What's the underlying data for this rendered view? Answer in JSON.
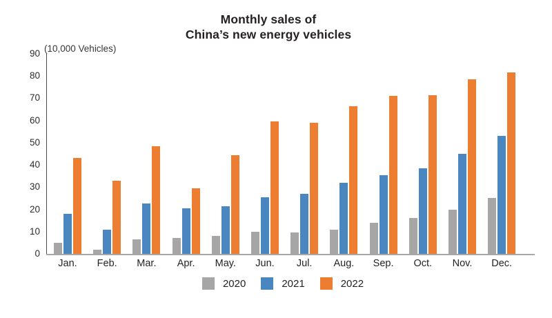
{
  "title": {
    "line1": "Monthly sales of",
    "line2": "China’s new energy vehicles"
  },
  "chart_data": {
    "type": "bar",
    "title": "Monthly sales of China’s new energy vehicles",
    "unit_label": "(10,000 Vehicles)",
    "xlabel": "",
    "ylabel": "(10,000 Vehicles)",
    "categories": [
      "Jan.",
      "Feb.",
      "Mar.",
      "Apr.",
      "May.",
      "Jun.",
      "Jul.",
      "Aug.",
      "Sep.",
      "Oct.",
      "Nov.",
      "Dec."
    ],
    "series": [
      {
        "name": "2020",
        "color": "#A6A6A6",
        "values": [
          5,
          2,
          6.5,
          7,
          8,
          10,
          9.5,
          11,
          14,
          16,
          20,
          25
        ]
      },
      {
        "name": "2021",
        "color": "#4A86C0",
        "values": [
          18,
          11,
          22.5,
          20.5,
          21.5,
          25.5,
          27,
          32,
          35.5,
          38.5,
          45,
          53
        ]
      },
      {
        "name": "2022",
        "color": "#ED7D31",
        "values": [
          43,
          33,
          48.5,
          29.5,
          44.5,
          59.5,
          59,
          66.5,
          71,
          71.5,
          78.5,
          81.5
        ]
      }
    ],
    "ylim": [
      0,
      90
    ],
    "y_tick_step": 10,
    "y_ticks": [
      0,
      10,
      20,
      30,
      40,
      50,
      60,
      70,
      80,
      90
    ],
    "grid": false,
    "legend_position": "bottom"
  },
  "colors": {
    "series_2020": "#A6A6A6",
    "series_2021": "#4A86C0",
    "series_2022": "#ED7D31",
    "axis_dark": "#4a4647",
    "axis_light": "#a8a8a8",
    "text": "#262223",
    "background": "#ffffff"
  }
}
